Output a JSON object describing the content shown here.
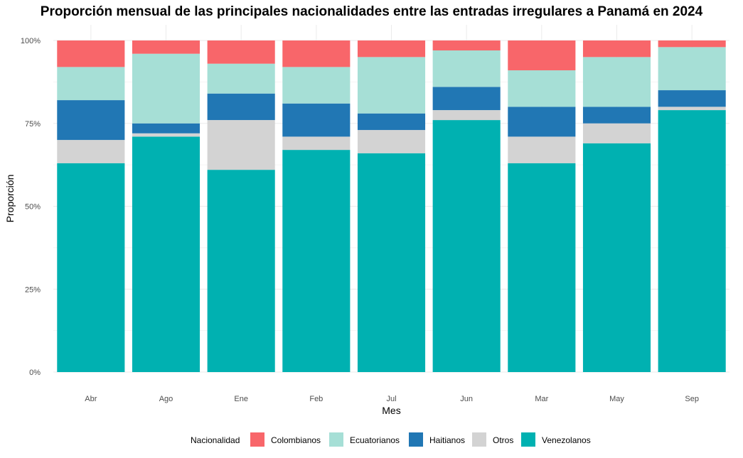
{
  "chart_data": {
    "type": "bar",
    "stacked": true,
    "percent": true,
    "title": "Proporción mensual de las principales nacionalidades entre las entradas irregulares a Panamá en 2024",
    "xlabel": "Mes",
    "ylabel": "Proporción",
    "ylim": [
      0,
      1
    ],
    "yticks": [
      0,
      0.25,
      0.5,
      0.75,
      1.0
    ],
    "ytick_labels": [
      "0%",
      "25%",
      "50%",
      "75%",
      "100%"
    ],
    "grid": true,
    "legend_position": "bottom",
    "legend_title": "Nacionalidad",
    "categories": [
      "Abr",
      "Ago",
      "Ene",
      "Feb",
      "Jul",
      "Jun",
      "Mar",
      "May",
      "Sep"
    ],
    "series": [
      {
        "name": "Colombianos",
        "color": "#F8666A",
        "values": [
          0.08,
          0.04,
          0.07,
          0.08,
          0.05,
          0.03,
          0.09,
          0.05,
          0.02
        ]
      },
      {
        "name": "Ecuatorianos",
        "color": "#A6DFD6",
        "values": [
          0.1,
          0.21,
          0.09,
          0.11,
          0.17,
          0.11,
          0.11,
          0.15,
          0.13
        ]
      },
      {
        "name": "Haitianos",
        "color": "#2177B4",
        "values": [
          0.12,
          0.03,
          0.08,
          0.1,
          0.05,
          0.07,
          0.09,
          0.05,
          0.05
        ]
      },
      {
        "name": "Otros",
        "color": "#D3D3D3",
        "values": [
          0.07,
          0.01,
          0.15,
          0.04,
          0.07,
          0.03,
          0.08,
          0.06,
          0.01
        ]
      },
      {
        "name": "Venezolanos",
        "color": "#00B1B1",
        "values": [
          0.63,
          0.71,
          0.61,
          0.67,
          0.66,
          0.76,
          0.63,
          0.69,
          0.79
        ]
      }
    ]
  }
}
